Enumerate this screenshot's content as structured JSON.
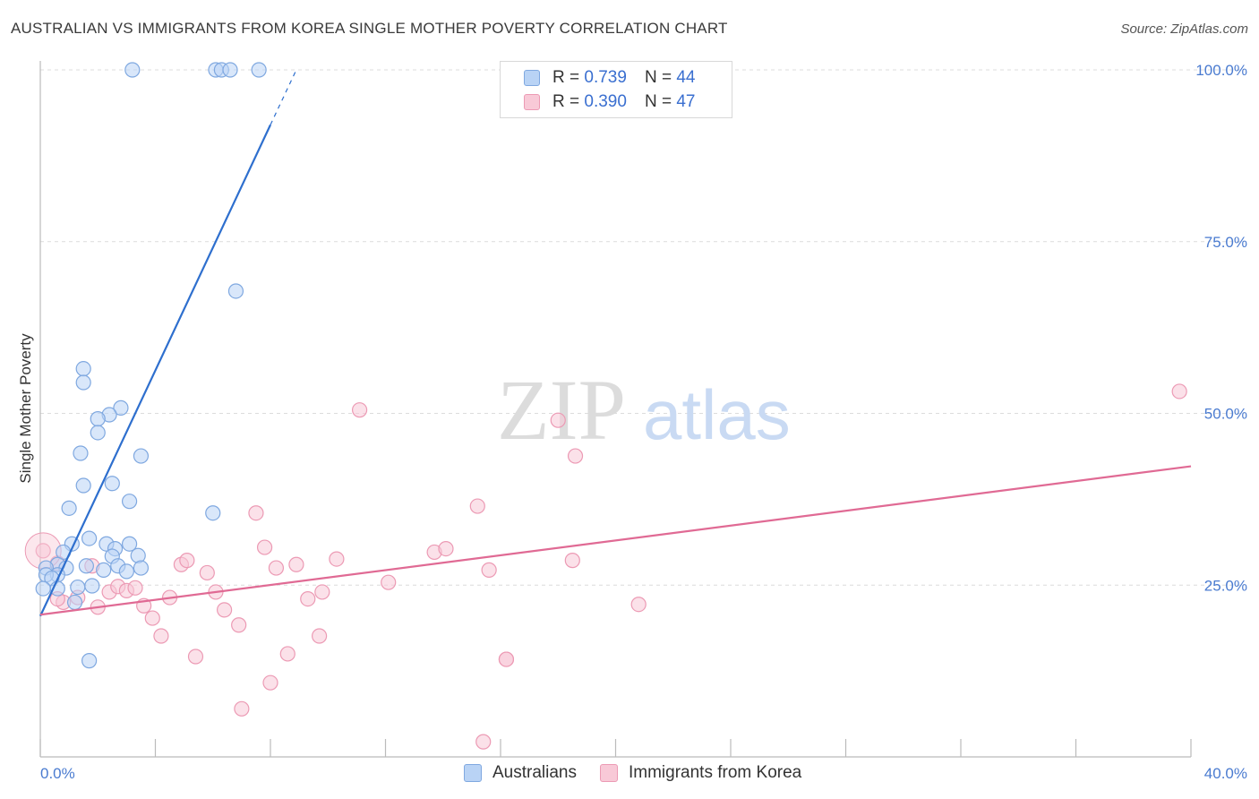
{
  "title": "AUSTRALIAN VS IMMIGRANTS FROM KOREA SINGLE MOTHER POVERTY CORRELATION CHART",
  "source": "Source: ZipAtlas.com",
  "watermark": {
    "zip": "ZIP",
    "atlas": "atlas"
  },
  "legend": {
    "rows": [
      {
        "r_label": "R =",
        "r_value": "0.739",
        "n_label": "N =",
        "n_value": "44"
      },
      {
        "r_label": "R =",
        "r_value": "0.390",
        "n_label": "N =",
        "n_value": "47"
      }
    ]
  },
  "bottom_legend": [
    "Australians",
    "Immigrants from Korea"
  ],
  "colors": {
    "blue_fill": "#b9d3f5",
    "blue_stroke": "#7fa8e0",
    "blue_line": "#2e6fce",
    "pink_fill": "#f8c9d7",
    "pink_stroke": "#ec9ab4",
    "pink_line": "#e06a94",
    "axis_label": "#4a7bd0",
    "grid": "#dcdcdc"
  },
  "chart_data": {
    "type": "scatter",
    "title": "AUSTRALIAN VS IMMIGRANTS FROM KOREA SINGLE MOTHER POVERTY CORRELATION CHART",
    "xlabel": "",
    "ylabel": "Single Mother Poverty",
    "xlim": [
      0,
      40
    ],
    "ylim": [
      0,
      100
    ],
    "x_tick_labels": [
      "0.0%",
      "40.0%"
    ],
    "y_tick_labels": [
      "25.0%",
      "50.0%",
      "75.0%",
      "100.0%"
    ],
    "y_ticks": [
      25,
      50,
      75,
      100
    ],
    "grid": true,
    "legend_position": "top-center",
    "series": [
      {
        "name": "Australians",
        "points": [
          [
            3.2,
            100
          ],
          [
            6.1,
            100
          ],
          [
            6.3,
            100
          ],
          [
            6.6,
            100
          ],
          [
            7.6,
            100
          ],
          [
            6.8,
            67.8
          ],
          [
            1.5,
            56.5
          ],
          [
            1.5,
            54.5
          ],
          [
            2.8,
            50.8
          ],
          [
            2.4,
            49.8
          ],
          [
            2.0,
            49.2
          ],
          [
            2.0,
            47.2
          ],
          [
            1.4,
            44.2
          ],
          [
            3.5,
            43.8
          ],
          [
            1.5,
            39.5
          ],
          [
            2.5,
            39.8
          ],
          [
            3.1,
            37.2
          ],
          [
            1.0,
            36.2
          ],
          [
            6.0,
            35.5
          ],
          [
            1.7,
            31.8
          ],
          [
            2.3,
            31.0
          ],
          [
            3.1,
            31.0
          ],
          [
            1.1,
            31.0
          ],
          [
            2.6,
            30.3
          ],
          [
            0.8,
            29.8
          ],
          [
            2.5,
            29.2
          ],
          [
            3.4,
            29.3
          ],
          [
            0.6,
            28.0
          ],
          [
            0.2,
            27.5
          ],
          [
            1.6,
            27.8
          ],
          [
            0.9,
            27.5
          ],
          [
            2.7,
            27.8
          ],
          [
            3.5,
            27.5
          ],
          [
            2.2,
            27.2
          ],
          [
            3.0,
            27.0
          ],
          [
            0.6,
            26.5
          ],
          [
            0.2,
            26.5
          ],
          [
            0.4,
            26.0
          ],
          [
            0.1,
            24.5
          ],
          [
            0.6,
            24.5
          ],
          [
            1.3,
            24.7
          ],
          [
            1.8,
            24.9
          ],
          [
            1.2,
            22.5
          ],
          [
            1.7,
            14.0
          ]
        ]
      },
      {
        "name": "Immigrants from Korea",
        "points": [
          [
            0.1,
            30.0
          ],
          [
            0.6,
            28.2
          ],
          [
            1.8,
            27.8
          ],
          [
            0.8,
            22.5
          ],
          [
            1.3,
            23.2
          ],
          [
            2.0,
            21.8
          ],
          [
            2.4,
            24.0
          ],
          [
            2.7,
            24.8
          ],
          [
            3.0,
            24.2
          ],
          [
            3.3,
            24.6
          ],
          [
            3.6,
            22.0
          ],
          [
            3.9,
            20.2
          ],
          [
            4.2,
            17.6
          ],
          [
            4.5,
            23.2
          ],
          [
            4.9,
            28.0
          ],
          [
            5.1,
            28.6
          ],
          [
            5.4,
            14.6
          ],
          [
            5.8,
            26.8
          ],
          [
            6.1,
            24.0
          ],
          [
            6.4,
            21.4
          ],
          [
            6.9,
            19.2
          ],
          [
            7.0,
            7.0
          ],
          [
            7.5,
            35.5
          ],
          [
            7.8,
            30.5
          ],
          [
            8.0,
            10.8
          ],
          [
            8.2,
            27.5
          ],
          [
            8.6,
            15.0
          ],
          [
            8.9,
            28.0
          ],
          [
            9.3,
            23.0
          ],
          [
            9.7,
            17.6
          ],
          [
            9.8,
            24.0
          ],
          [
            10.3,
            28.8
          ],
          [
            11.1,
            50.5
          ],
          [
            12.1,
            25.4
          ],
          [
            13.7,
            29.8
          ],
          [
            14.1,
            30.3
          ],
          [
            15.2,
            36.5
          ],
          [
            15.4,
            2.2
          ],
          [
            15.6,
            27.2
          ],
          [
            16.2,
            14.2
          ],
          [
            16.2,
            14.2
          ],
          [
            18.0,
            49.0
          ],
          [
            18.5,
            28.6
          ],
          [
            18.6,
            43.8
          ],
          [
            20.8,
            22.2
          ],
          [
            39.6,
            53.2
          ],
          [
            0.6,
            23.0
          ]
        ]
      }
    ],
    "trendlines": [
      {
        "series": "Australians",
        "x0": 0,
        "y0": 20.5,
        "x1": 8.0,
        "y1": 92.0,
        "dashed_to_x": 8.9,
        "dashed_to_y": 100
      },
      {
        "series": "Immigrants from Korea",
        "x0": 0,
        "y0": 20.7,
        "x1": 40,
        "y1": 42.3
      }
    ]
  }
}
